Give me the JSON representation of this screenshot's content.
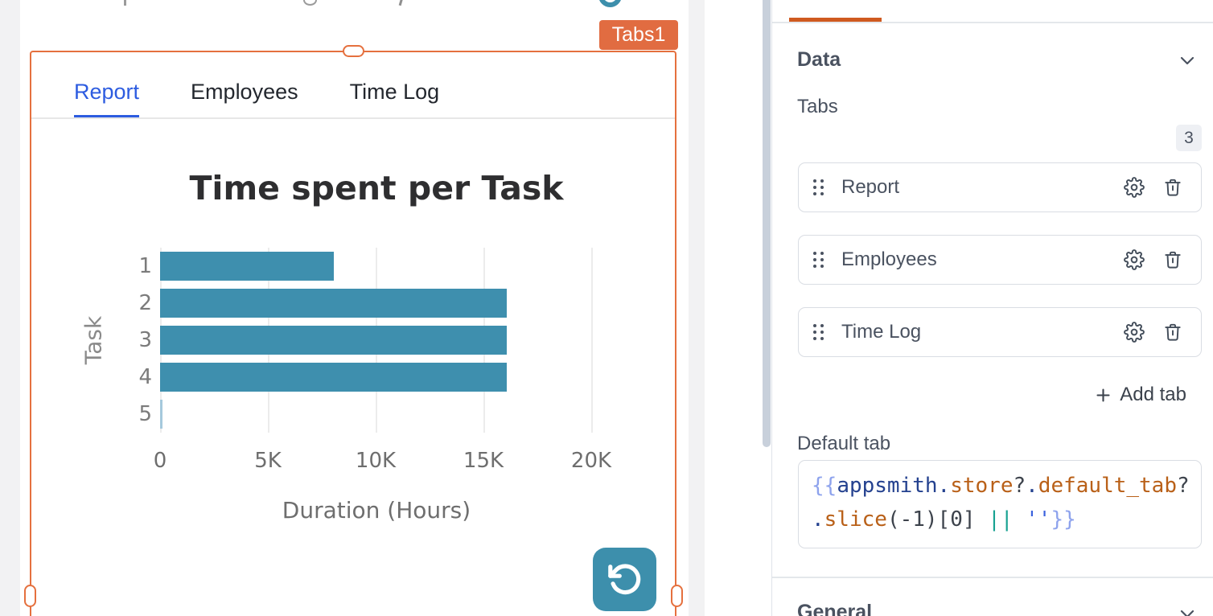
{
  "canvas": {
    "widget_badge": "Tabs1",
    "tab_bar": {
      "tabs": [
        {
          "label": "Report",
          "active": true
        },
        {
          "label": "Employees",
          "active": false
        },
        {
          "label": "Time Log",
          "active": false
        }
      ]
    }
  },
  "chart_data": {
    "type": "bar",
    "orientation": "horizontal",
    "title": "Time spent per Task",
    "categories": [
      "1",
      "2",
      "3",
      "4",
      "5"
    ],
    "values": [
      8050,
      16080,
      16080,
      16080,
      80
    ],
    "xlabel": "Duration (Hours)",
    "ylabel": "Task",
    "xlim": [
      0,
      20000
    ],
    "xticks": [
      {
        "value": 0,
        "label": "0"
      },
      {
        "value": 5000,
        "label": "5K"
      },
      {
        "value": 10000,
        "label": "10K"
      },
      {
        "value": 15000,
        "label": "15K"
      },
      {
        "value": 20000,
        "label": "20K"
      }
    ],
    "grid": true,
    "legend": false,
    "bar_color": "#3e8fae",
    "last_bar_color": "#a5c9dc"
  },
  "property_pane": {
    "data_section": {
      "title": "Data",
      "field_label": "Tabs",
      "count_badge": "3",
      "tabs": [
        {
          "label": "Report"
        },
        {
          "label": "Employees"
        },
        {
          "label": "Time Log"
        }
      ],
      "add_tab_label": "Add tab",
      "default_tab_label": "Default tab",
      "default_tab_value": "{{appsmith.store?.default_tab?.slice(-1)[0] || ''}}",
      "code_lines": [
        [
          {
            "t": "{{",
            "c": "brace"
          },
          {
            "t": "appsmith",
            "c": "kw"
          },
          {
            "t": ".",
            "c": "kw"
          },
          {
            "t": "store",
            "c": "prop"
          },
          {
            "t": "?",
            "c": "plain"
          },
          {
            "t": ".",
            "c": "kw"
          },
          {
            "t": "default_tab",
            "c": "prop"
          },
          {
            "t": "?",
            "c": "plain"
          }
        ],
        [
          {
            "t": ".",
            "c": "kw"
          },
          {
            "t": "slice",
            "c": "prop"
          },
          {
            "t": "(-1)[0]",
            "c": "plain"
          },
          {
            "t": " ",
            "c": "plain"
          },
          {
            "t": "||",
            "c": "op"
          },
          {
            "t": " ",
            "c": "plain"
          },
          {
            "t": "''",
            "c": "str"
          },
          {
            "t": "}}",
            "c": "brace"
          }
        ]
      ]
    },
    "general_section": {
      "title": "General"
    }
  },
  "colors": {
    "selection_orange": "#e5703e",
    "pane_accent_orange": "#cf5a20",
    "active_tab_blue": "#2d5ce0",
    "bar_teal": "#3e8fae",
    "refresh_teal": "#3d8fac",
    "panel_text": "#4a5260"
  }
}
